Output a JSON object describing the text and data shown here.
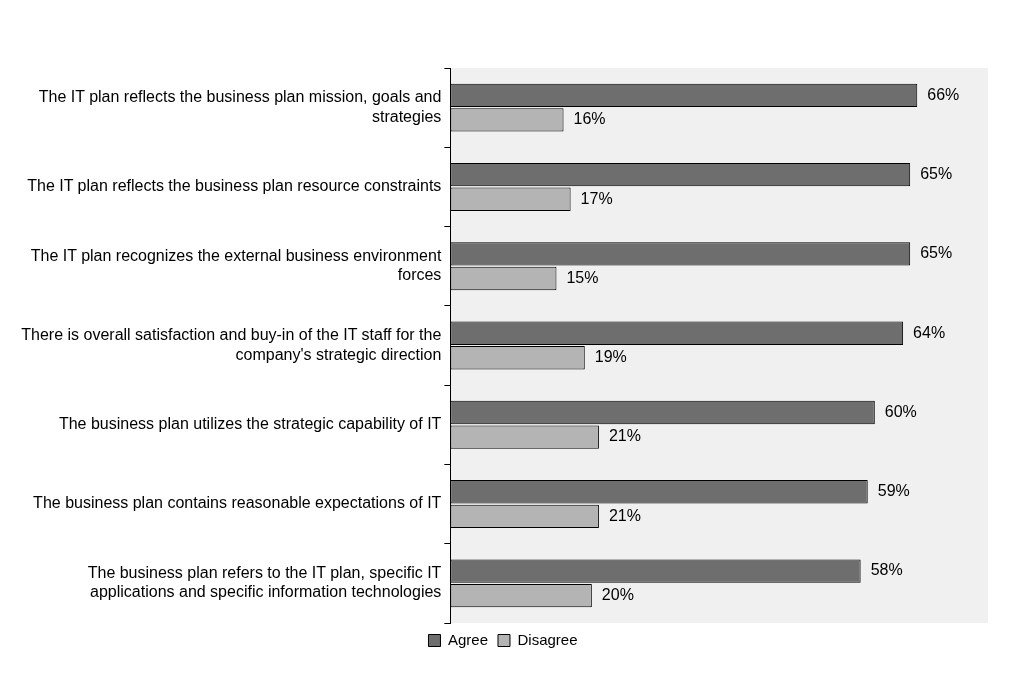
{
  "chart_data": {
    "type": "bar",
    "orientation": "horizontal",
    "categories": [
      "The IT plan reflects the business plan mission, goals and strategies",
      "The IT plan reflects the business plan resource constraints",
      "The IT plan recognizes the external business environment forces",
      "There is overall satisfaction and buy-in of the IT staff for the company's strategic direction",
      "The business plan utilizes the strategic capability of IT",
      "The business plan contains reasonable expectations of IT",
      "The business plan refers to the IT plan, specific IT applications and specific information technologies"
    ],
    "series": [
      {
        "name": "Agree",
        "color": "#6e6e6e",
        "values": [
          66,
          65,
          65,
          64,
          60,
          59,
          58
        ],
        "value_labels": [
          "66%",
          "65%",
          "65%",
          "64%",
          "60%",
          "59%",
          "58%"
        ]
      },
      {
        "name": "Disagree",
        "color": "#b4b4b4",
        "values": [
          16,
          17,
          15,
          19,
          21,
          21,
          20
        ],
        "value_labels": [
          "16%",
          "17%",
          "15%",
          "19%",
          "21%",
          "21%",
          "20%"
        ]
      }
    ],
    "xlim": [
      0,
      76
    ],
    "tick_labels": "y",
    "legend": "bottom"
  }
}
